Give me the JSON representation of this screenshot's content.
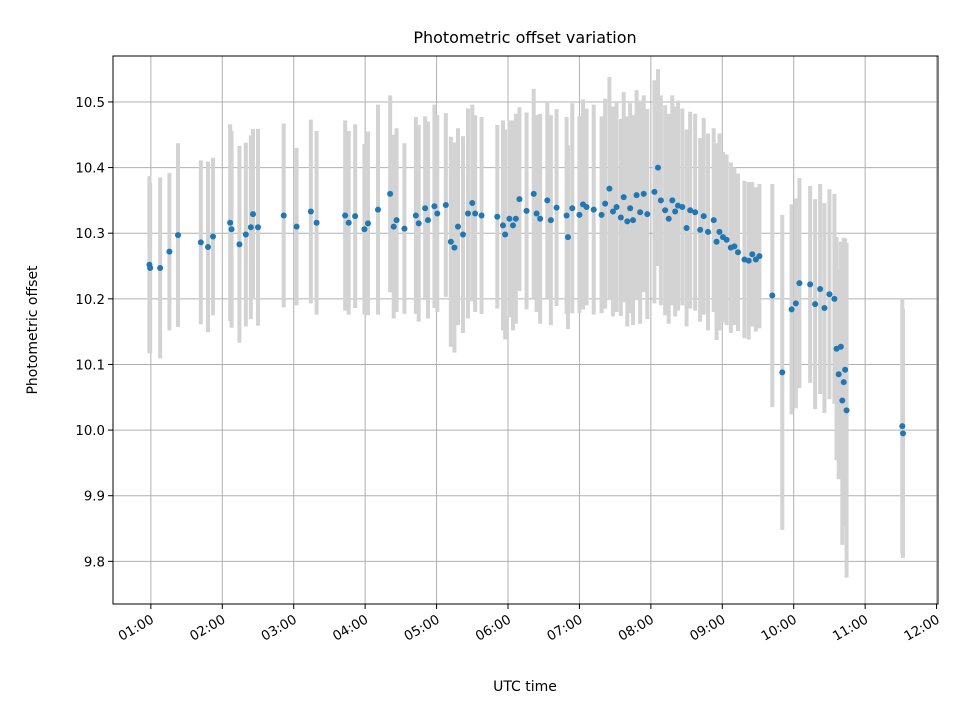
{
  "chart_data": {
    "type": "scatter",
    "title": "Photometric offset variation",
    "xlabel": "UTC time",
    "ylabel": "Photometric offset",
    "xlim_hours": [
      0.47,
      12.02
    ],
    "ylim": [
      9.735,
      10.57
    ],
    "grid": true,
    "x_ticks": [
      {
        "hours": 1,
        "label": "01:00"
      },
      {
        "hours": 2,
        "label": "02:00"
      },
      {
        "hours": 3,
        "label": "03:00"
      },
      {
        "hours": 4,
        "label": "04:00"
      },
      {
        "hours": 5,
        "label": "05:00"
      },
      {
        "hours": 6,
        "label": "06:00"
      },
      {
        "hours": 7,
        "label": "07:00"
      },
      {
        "hours": 8,
        "label": "08:00"
      },
      {
        "hours": 9,
        "label": "09:00"
      },
      {
        "hours": 10,
        "label": "10:00"
      },
      {
        "hours": 11,
        "label": "11:00"
      },
      {
        "hours": 12,
        "label": "12:00"
      }
    ],
    "y_ticks": [
      9.8,
      9.9,
      10.0,
      10.1,
      10.2,
      10.3,
      10.4,
      10.5
    ],
    "y_tick_labels": [
      "9.8",
      "9.9",
      "10.0",
      "10.1",
      "10.2",
      "10.3",
      "10.4",
      "10.5"
    ],
    "series": [
      {
        "name": "offset",
        "marker_color": "#1f77b4",
        "errorbar_color": "#d3d3d3",
        "points": [
          [
            0.98,
            10.252,
            0.135
          ],
          [
            0.99,
            10.247,
            0.13
          ],
          [
            1.13,
            10.247,
            0.138
          ],
          [
            1.26,
            10.272,
            0.12
          ],
          [
            1.38,
            10.297,
            0.14
          ],
          [
            1.7,
            10.286,
            0.125
          ],
          [
            1.8,
            10.279,
            0.13
          ],
          [
            1.87,
            10.295,
            0.12
          ],
          [
            2.11,
            10.316,
            0.15
          ],
          [
            2.13,
            10.306,
            0.15
          ],
          [
            2.24,
            10.283,
            0.15
          ],
          [
            2.33,
            10.298,
            0.14
          ],
          [
            2.4,
            10.309,
            0.14
          ],
          [
            2.43,
            10.329,
            0.13
          ],
          [
            2.5,
            10.309,
            0.15
          ],
          [
            2.86,
            10.327,
            0.14
          ],
          [
            3.04,
            10.31,
            0.12
          ],
          [
            3.24,
            10.333,
            0.14
          ],
          [
            3.32,
            10.316,
            0.14
          ],
          [
            3.72,
            10.327,
            0.145
          ],
          [
            3.77,
            10.316,
            0.14
          ],
          [
            3.86,
            10.326,
            0.14
          ],
          [
            3.99,
            10.306,
            0.13
          ],
          [
            4.04,
            10.315,
            0.14
          ],
          [
            4.18,
            10.336,
            0.16
          ],
          [
            4.35,
            10.36,
            0.15
          ],
          [
            4.4,
            10.31,
            0.14
          ],
          [
            4.44,
            10.32,
            0.14
          ],
          [
            4.55,
            10.307,
            0.13
          ],
          [
            4.71,
            10.327,
            0.15
          ],
          [
            4.75,
            10.315,
            0.15
          ],
          [
            4.84,
            10.338,
            0.14
          ],
          [
            4.88,
            10.32,
            0.15
          ],
          [
            4.97,
            10.341,
            0.155
          ],
          [
            5.01,
            10.33,
            0.15
          ],
          [
            5.13,
            10.343,
            0.14
          ],
          [
            5.2,
            10.287,
            0.16
          ],
          [
            5.25,
            10.278,
            0.16
          ],
          [
            5.3,
            10.31,
            0.15
          ],
          [
            5.37,
            10.298,
            0.15
          ],
          [
            5.44,
            10.33,
            0.16
          ],
          [
            5.5,
            10.346,
            0.15
          ],
          [
            5.54,
            10.33,
            0.15
          ],
          [
            5.63,
            10.327,
            0.15
          ],
          [
            5.85,
            10.325,
            0.14
          ],
          [
            5.93,
            10.312,
            0.16
          ],
          [
            5.96,
            10.298,
            0.16
          ],
          [
            6.02,
            10.322,
            0.15
          ],
          [
            6.07,
            10.312,
            0.16
          ],
          [
            6.11,
            10.322,
            0.16
          ],
          [
            6.16,
            10.352,
            0.14
          ],
          [
            6.26,
            10.334,
            0.15
          ],
          [
            6.36,
            10.36,
            0.16
          ],
          [
            6.4,
            10.33,
            0.15
          ],
          [
            6.45,
            10.322,
            0.16
          ],
          [
            6.55,
            10.35,
            0.15
          ],
          [
            6.6,
            10.32,
            0.16
          ],
          [
            6.68,
            10.339,
            0.15
          ],
          [
            6.82,
            10.327,
            0.15
          ],
          [
            6.84,
            10.294,
            0.14
          ],
          [
            6.9,
            10.338,
            0.16
          ],
          [
            7.0,
            10.328,
            0.15
          ],
          [
            7.05,
            10.344,
            0.16
          ],
          [
            7.1,
            10.34,
            0.15
          ],
          [
            7.2,
            10.336,
            0.16
          ],
          [
            7.31,
            10.328,
            0.15
          ],
          [
            7.36,
            10.345,
            0.16
          ],
          [
            7.42,
            10.368,
            0.17
          ],
          [
            7.47,
            10.333,
            0.16
          ],
          [
            7.52,
            10.34,
            0.16
          ],
          [
            7.58,
            10.324,
            0.15
          ],
          [
            7.62,
            10.355,
            0.16
          ],
          [
            7.67,
            10.318,
            0.16
          ],
          [
            7.71,
            10.338,
            0.16
          ],
          [
            7.75,
            10.32,
            0.16
          ],
          [
            7.8,
            10.358,
            0.16
          ],
          [
            7.85,
            10.332,
            0.17
          ],
          [
            7.9,
            10.36,
            0.15
          ],
          [
            7.95,
            10.329,
            0.16
          ],
          [
            8.05,
            10.363,
            0.17
          ],
          [
            8.1,
            10.4,
            0.15
          ],
          [
            8.14,
            10.35,
            0.16
          ],
          [
            8.2,
            10.335,
            0.16
          ],
          [
            8.25,
            10.322,
            0.16
          ],
          [
            8.3,
            10.35,
            0.16
          ],
          [
            8.34,
            10.333,
            0.16
          ],
          [
            8.38,
            10.342,
            0.16
          ],
          [
            8.44,
            10.34,
            0.15
          ],
          [
            8.5,
            10.308,
            0.15
          ],
          [
            8.55,
            10.335,
            0.15
          ],
          [
            8.62,
            10.332,
            0.15
          ],
          [
            8.69,
            10.305,
            0.14
          ],
          [
            8.74,
            10.326,
            0.15
          ],
          [
            8.8,
            10.302,
            0.15
          ],
          [
            8.88,
            10.32,
            0.14
          ],
          [
            8.92,
            10.287,
            0.15
          ],
          [
            8.96,
            10.302,
            0.15
          ],
          [
            9.01,
            10.294,
            0.13
          ],
          [
            9.06,
            10.29,
            0.13
          ],
          [
            9.12,
            10.278,
            0.13
          ],
          [
            9.17,
            10.28,
            0.12
          ],
          [
            9.22,
            10.271,
            0.12
          ],
          [
            9.31,
            10.26,
            0.12
          ],
          [
            9.37,
            10.258,
            0.12
          ],
          [
            9.42,
            10.268,
            0.11
          ],
          [
            9.47,
            10.26,
            0.11
          ],
          [
            9.52,
            10.265,
            0.11
          ],
          [
            9.7,
            10.205,
            0.17
          ],
          [
            9.84,
            10.088,
            0.24
          ],
          [
            9.97,
            10.184,
            0.16
          ],
          [
            10.03,
            10.193,
            0.16
          ],
          [
            10.08,
            10.224,
            0.16
          ],
          [
            10.23,
            10.222,
            0.15
          ],
          [
            10.3,
            10.192,
            0.16
          ],
          [
            10.37,
            10.215,
            0.16
          ],
          [
            10.43,
            10.186,
            0.16
          ],
          [
            10.5,
            10.207,
            0.16
          ],
          [
            10.57,
            10.2,
            0.16
          ],
          [
            10.6,
            10.124,
            0.17
          ],
          [
            10.63,
            10.085,
            0.16
          ],
          [
            10.66,
            10.127,
            0.16
          ],
          [
            10.68,
            10.045,
            0.22
          ],
          [
            10.7,
            10.073,
            0.22
          ],
          [
            10.72,
            10.092,
            0.2
          ],
          [
            10.74,
            10.03,
            0.255
          ],
          [
            11.52,
            10.006,
            0.195
          ],
          [
            11.53,
            9.995,
            0.19
          ]
        ]
      }
    ]
  }
}
